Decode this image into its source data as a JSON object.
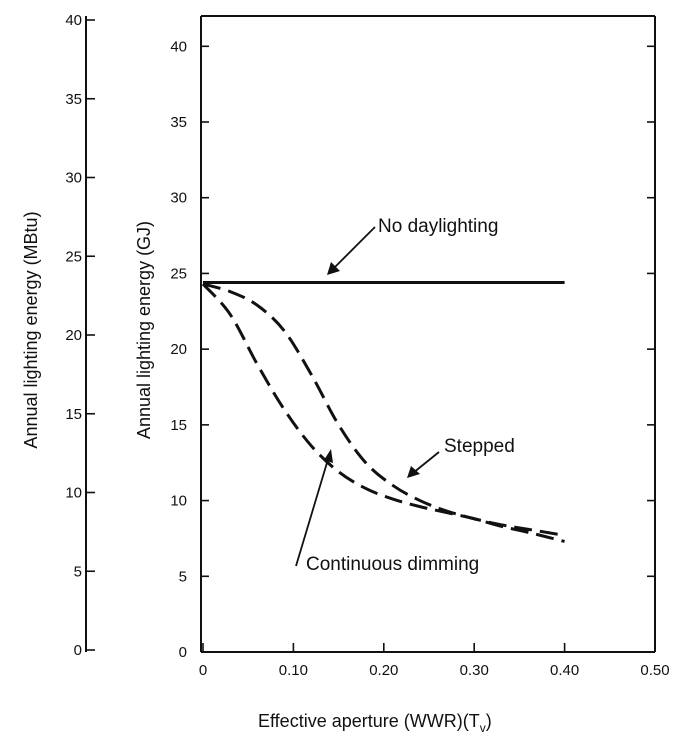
{
  "chart_data": {
    "type": "line",
    "xlabel": "Effective aperture (WWR)(T",
    "xlabel_subscript": "v",
    "xlabel_close": ")",
    "ylabel_left": "Annual lighting energy (MBtu)",
    "ylabel_right": "Annual lighting energy (GJ)",
    "xlim": [
      0,
      0.5
    ],
    "ylim_gj": [
      0,
      42
    ],
    "ylim_mbtu": [
      0,
      40
    ],
    "x_ticks": [
      "0",
      "0.10",
      "0.20",
      "0.30",
      "0.40",
      "0.50"
    ],
    "x_tick_values": [
      0,
      0.1,
      0.2,
      0.3,
      0.4,
      0.5
    ],
    "y_ticks_gj": [
      "0",
      "5",
      "10",
      "15",
      "20",
      "25",
      "30",
      "35",
      "40"
    ],
    "y_tick_values_gj": [
      0,
      5,
      10,
      15,
      20,
      25,
      30,
      35,
      40
    ],
    "y_ticks_mbtu": [
      "0",
      "5",
      "10",
      "15",
      "20",
      "25",
      "30",
      "35",
      "40"
    ],
    "y_tick_values_mbtu": [
      0,
      5,
      10,
      15,
      20,
      25,
      30,
      35,
      40
    ],
    "series": [
      {
        "name": "No daylighting",
        "style": "solid",
        "x": [
          0,
          0.1,
          0.2,
          0.3,
          0.4
        ],
        "y": [
          24.4,
          24.4,
          24.4,
          24.4,
          24.4
        ]
      },
      {
        "name": "Stepped",
        "style": "dashed",
        "x": [
          0,
          0.03,
          0.06,
          0.09,
          0.12,
          0.15,
          0.18,
          0.21,
          0.24,
          0.27,
          0.3,
          0.33,
          0.36,
          0.4
        ],
        "y": [
          24.3,
          23.8,
          22.9,
          21.2,
          18.3,
          15.0,
          12.5,
          11.0,
          10.0,
          9.3,
          8.8,
          8.4,
          8.1,
          7.7
        ]
      },
      {
        "name": "Continuous dimming",
        "style": "dashed",
        "x": [
          0,
          0.03,
          0.06,
          0.09,
          0.12,
          0.15,
          0.18,
          0.21,
          0.24,
          0.27,
          0.3,
          0.33,
          0.36,
          0.4
        ],
        "y": [
          24.3,
          22.3,
          19.0,
          16.0,
          13.6,
          11.9,
          10.8,
          10.1,
          9.6,
          9.2,
          8.8,
          8.3,
          7.9,
          7.3
        ]
      }
    ],
    "annotations": [
      {
        "text": "No daylighting",
        "points_to": "No daylighting"
      },
      {
        "text": "Stepped",
        "points_to": "Stepped"
      },
      {
        "text": "Continuous dimming",
        "points_to": "Continuous dimming"
      }
    ],
    "grid": false
  }
}
